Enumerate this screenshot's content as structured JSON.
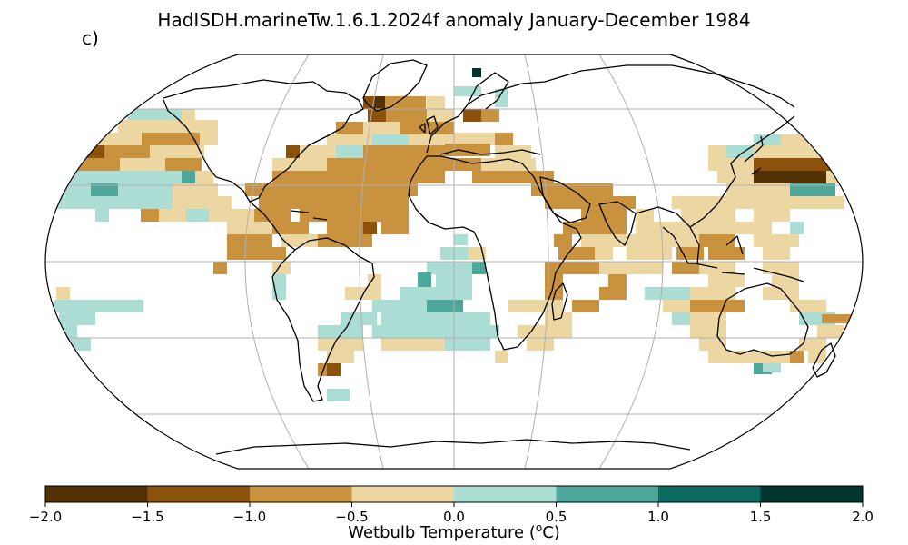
{
  "title": "HadISDH.marineTw.1.6.1.2024f anomaly January-December 1984",
  "panel_label": "c)",
  "colorbar": {
    "label_main": "Wetbulb Temperature (",
    "label_sup": "o",
    "label_unit": "C)",
    "ticks": [
      "−2.0",
      "−1.5",
      "−1.0",
      "−0.5",
      "0.0",
      "0.5",
      "1.0",
      "1.5",
      "2.0"
    ],
    "bins": [
      {
        "range": [
          -2.0,
          -1.5
        ],
        "color": "#543005"
      },
      {
        "range": [
          -1.5,
          -1.0
        ],
        "color": "#8c510a"
      },
      {
        "range": [
          -1.0,
          -0.5
        ],
        "color": "#c9923e"
      },
      {
        "range": [
          -0.5,
          0.0
        ],
        "color": "#ecd6a2"
      },
      {
        "range": [
          0.0,
          0.5
        ],
        "color": "#abddd5"
      },
      {
        "range": [
          0.5,
          1.0
        ],
        "color": "#4ea79b"
      },
      {
        "range": [
          1.0,
          1.5
        ],
        "color": "#0c6b60"
      },
      {
        "range": [
          1.5,
          2.0
        ],
        "color": "#01342c"
      }
    ]
  },
  "map": {
    "projection": "Robinson",
    "gridlines": {
      "longitudes": [
        -120,
        -60,
        0,
        60,
        120
      ],
      "latitudes": [
        -60,
        -30,
        0,
        30,
        60
      ]
    }
  }
}
